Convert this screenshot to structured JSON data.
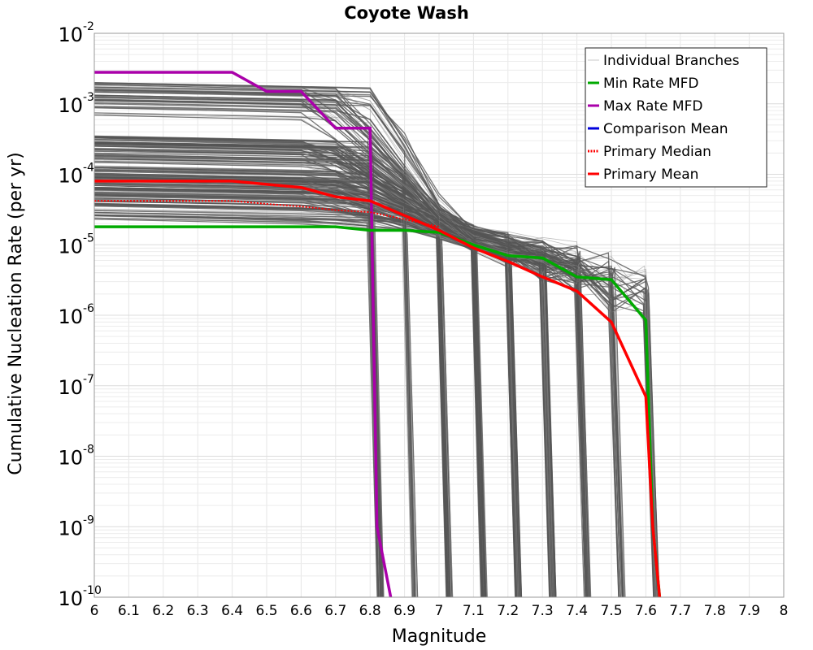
{
  "chart_data": {
    "type": "line",
    "title": "Coyote Wash",
    "xlabel": "Magnitude",
    "ylabel": "Cumulative Nucleation Rate (per yr)",
    "xlim": [
      6,
      8
    ],
    "ylim": [
      1e-10,
      0.01
    ],
    "yscale": "log",
    "grid": true,
    "legend_position": "top-right",
    "x_ticks": [
      "6",
      "6.1",
      "6.2",
      "6.3",
      "6.4",
      "6.5",
      "6.6",
      "6.7",
      "6.8",
      "6.9",
      "7",
      "7.1",
      "7.2",
      "7.3",
      "7.4",
      "7.5",
      "7.6",
      "7.7",
      "7.8",
      "7.9",
      "8"
    ],
    "y_ticks": [
      {
        "base": "10",
        "exp": "-10"
      },
      {
        "base": "10",
        "exp": "-9"
      },
      {
        "base": "10",
        "exp": "-8"
      },
      {
        "base": "10",
        "exp": "-7"
      },
      {
        "base": "10",
        "exp": "-6"
      },
      {
        "base": "10",
        "exp": "-5"
      },
      {
        "base": "10",
        "exp": "-4"
      },
      {
        "base": "10",
        "exp": "-3"
      },
      {
        "base": "10",
        "exp": "-2"
      }
    ],
    "legend": [
      {
        "name": "Individual Branches",
        "color": "#c8c8c8",
        "style": "thin"
      },
      {
        "name": "Min Rate MFD",
        "color": "#00aa00",
        "style": "solid"
      },
      {
        "name": "Max Rate MFD",
        "color": "#aa00aa",
        "style": "solid"
      },
      {
        "name": "Comparison Mean",
        "color": "#0000dd",
        "style": "solid"
      },
      {
        "name": " Primary Median",
        "color": "#ff0000",
        "style": "dotted"
      },
      {
        "name": "Primary Mean",
        "color": "#ff0000",
        "style": "solid"
      }
    ],
    "series": [
      {
        "name": "Max Rate MFD",
        "color": "#aa00aa",
        "x": [
          6.0,
          6.4,
          6.5,
          6.6,
          6.7,
          6.8,
          6.82,
          6.86
        ],
        "y": [
          0.0028,
          0.0028,
          0.0015,
          0.0015,
          0.00045,
          0.00045,
          1e-09,
          1e-10
        ]
      },
      {
        "name": "Min Rate MFD",
        "color": "#00aa00",
        "x": [
          6.0,
          6.7,
          6.8,
          6.9,
          7.0,
          7.1,
          7.2,
          7.3,
          7.4,
          7.5,
          7.6,
          7.62,
          7.64
        ],
        "y": [
          1.8e-05,
          1.8e-05,
          1.6e-05,
          1.6e-05,
          1.5e-05,
          1e-05,
          7e-06,
          6.5e-06,
          3.5e-06,
          3.2e-06,
          8.5e-07,
          1e-09,
          1e-10
        ]
      },
      {
        "name": " Primary Median",
        "color": "#ff0000",
        "x": [
          6.0,
          6.4,
          6.5,
          6.6,
          6.7,
          6.8,
          6.9,
          7.0
        ],
        "y": [
          4.2e-05,
          4.2e-05,
          3.8e-05,
          3.5e-05,
          3.1e-05,
          2.9e-05,
          2.3e-05,
          1.8e-05
        ]
      },
      {
        "name": "Primary Mean",
        "color": "#ff0000",
        "x": [
          6.0,
          6.4,
          6.5,
          6.6,
          6.7,
          6.8,
          6.9,
          7.0,
          7.1,
          7.2,
          7.3,
          7.4,
          7.5,
          7.6,
          7.62,
          7.64
        ],
        "y": [
          8e-05,
          8e-05,
          7.2e-05,
          6.5e-05,
          4.8e-05,
          4.2e-05,
          2.6e-05,
          1.6e-05,
          9e-06,
          5.8e-06,
          3.5e-06,
          2.2e-06,
          8e-07,
          7e-08,
          1e-09,
          1e-10
        ]
      }
    ],
    "branches": {
      "count": 260,
      "color": "#555555",
      "note": "family of individual logic-tree branch curves (plateau then truncation)"
    }
  }
}
